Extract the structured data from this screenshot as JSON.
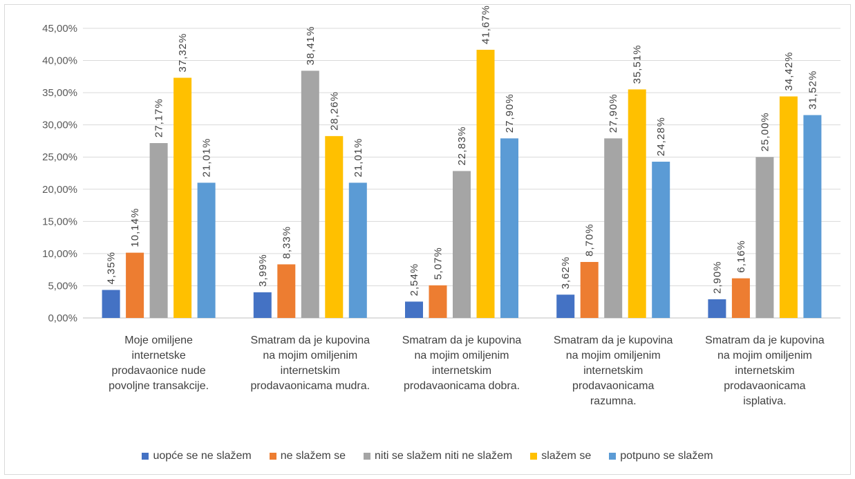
{
  "chart_data": {
    "type": "bar",
    "categories": [
      [
        "Moje omiljene",
        "internetske",
        "prodavaonice nude",
        "povoljne transakcije."
      ],
      [
        "Smatram da je kupovina",
        "na mojim omiljenim",
        "internetskim",
        "prodavaonicama mudra."
      ],
      [
        "Smatram da je kupovina",
        "na mojim omiljenim",
        "internetskim",
        "prodavaonicama dobra."
      ],
      [
        "Smatram da je kupovina",
        "na mojim omiljenim",
        "internetskim",
        "prodavaonicama",
        "razumna."
      ],
      [
        "Smatram da je kupovina",
        "na mojim omiljenim",
        "internetskim",
        "prodavaonicama",
        "isplativa."
      ]
    ],
    "series": [
      {
        "name": "uopće se ne slažem",
        "color": "#4472c4",
        "values": [
          4.35,
          3.99,
          2.54,
          3.62,
          2.9
        ],
        "labels": [
          "4,35%",
          "3,99%",
          "2,54%",
          "3,62%",
          "2,90%"
        ]
      },
      {
        "name": "ne slažem se",
        "color": "#ed7d31",
        "values": [
          10.14,
          8.33,
          5.07,
          8.7,
          6.16
        ],
        "labels": [
          "10,14%",
          "8,33%",
          "5,07%",
          "8,70%",
          "6,16%"
        ]
      },
      {
        "name": "niti se slažem niti ne slažem",
        "color": "#a5a5a5",
        "values": [
          27.17,
          38.41,
          22.83,
          27.9,
          25.0
        ],
        "labels": [
          "27,17%",
          "38,41%",
          "22,83%",
          "27,90%",
          "25,00%"
        ]
      },
      {
        "name": "slažem se",
        "color": "#ffc000",
        "values": [
          37.32,
          28.26,
          41.67,
          35.51,
          34.42
        ],
        "labels": [
          "37,32%",
          "28,26%",
          "41,67%",
          "35,51%",
          "34,42%"
        ]
      },
      {
        "name": "potpuno se slažem",
        "color": "#5b9bd5",
        "values": [
          21.01,
          21.01,
          27.9,
          24.28,
          31.52
        ],
        "labels": [
          "21,01%",
          "21,01%",
          "27,90%",
          "24,28%",
          "31,52%"
        ]
      }
    ],
    "yticks": [
      "0,00%",
      "5,00%",
      "10,00%",
      "15,00%",
      "20,00%",
      "25,00%",
      "30,00%",
      "35,00%",
      "40,00%",
      "45,00%"
    ],
    "ylim": [
      0,
      45
    ],
    "grid": true,
    "legend": "bottom",
    "title": "",
    "xlabel": "",
    "ylabel": ""
  }
}
